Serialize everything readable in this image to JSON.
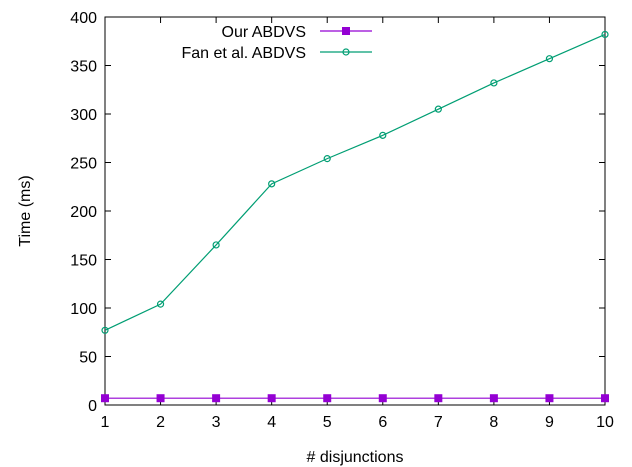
{
  "chart_data": {
    "type": "line",
    "xlabel": "# disjunctions",
    "ylabel": "Time (ms)",
    "xlim": [
      1,
      10
    ],
    "ylim": [
      0,
      400
    ],
    "grid": false,
    "legend_position": "top-left",
    "x": [
      1,
      2,
      3,
      4,
      5,
      6,
      7,
      8,
      9,
      10
    ],
    "xticks": [
      "1",
      "2",
      "3",
      "4",
      "5",
      "6",
      "7",
      "8",
      "9",
      "10"
    ],
    "yticks": [
      "0",
      "50",
      "100",
      "150",
      "200",
      "250",
      "300",
      "350",
      "400"
    ],
    "series": [
      {
        "name": "Our ABDVS",
        "color": "#9400d3",
        "marker": "filled-square",
        "values": [
          7,
          7,
          7,
          7,
          7,
          7,
          7,
          7,
          7,
          7
        ]
      },
      {
        "name": "Fan et al. ABDVS",
        "color": "#009e73",
        "marker": "open-circle",
        "values": [
          77,
          104,
          165,
          228,
          254,
          278,
          305,
          332,
          357,
          382
        ]
      }
    ]
  }
}
